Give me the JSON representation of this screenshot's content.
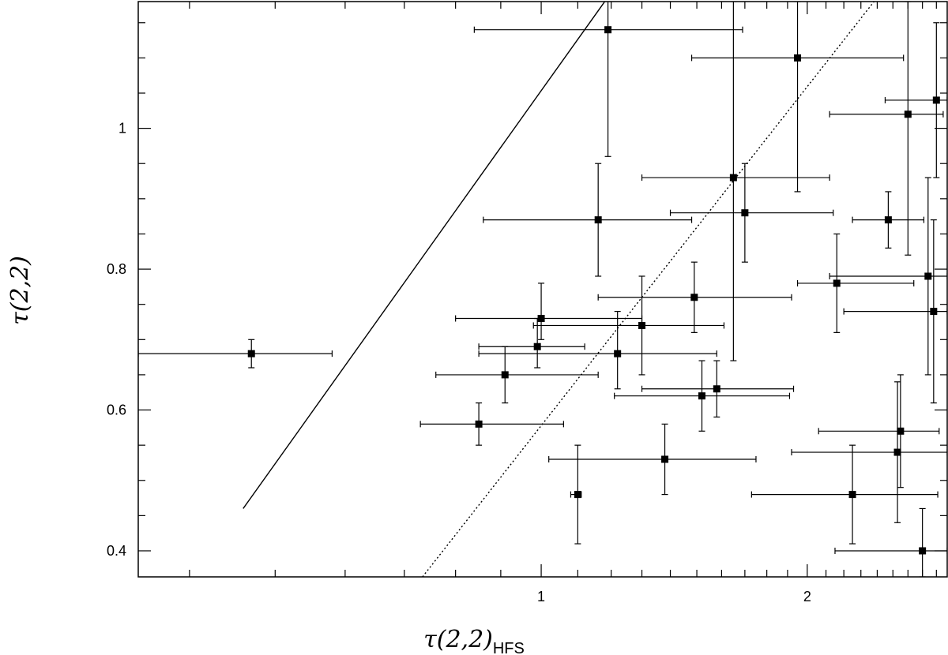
{
  "chart_data": {
    "type": "scatter",
    "xlabel": "τ(2,2)",
    "xlabel_sub": "HFS",
    "ylabel": "τ(2,2)",
    "xlim": [
      0.35,
      2.88
    ],
    "ylim": [
      0.363,
      1.18
    ],
    "x_scale": "log",
    "y_scale": "linear",
    "x_major_ticks": [
      1,
      2
    ],
    "x_tick_labels": [
      "1",
      "2"
    ],
    "y_major_ticks": [
      0.4,
      0.6,
      0.8,
      1.0
    ],
    "y_tick_labels": [
      "0.4",
      "0.6",
      "0.8",
      "1"
    ],
    "grid": false,
    "reference_lines": [
      {
        "style": "solid",
        "points": [
          [
            0.46,
            0.46
          ],
          [
            1.18,
            1.18
          ]
        ]
      },
      {
        "style": "dotted",
        "points": [
          [
            0.734,
            0.363
          ],
          [
            2.38,
            1.18
          ]
        ]
      }
    ],
    "points": [
      {
        "x": 0.47,
        "y": 0.68,
        "x_err": [
          0.35,
          0.58
        ],
        "y_err": [
          0.66,
          0.7
        ]
      },
      {
        "x": 0.85,
        "y": 0.58,
        "x_err": [
          0.73,
          1.06
        ],
        "y_err": [
          0.55,
          0.61
        ]
      },
      {
        "x": 0.91,
        "y": 0.65,
        "x_err": [
          0.76,
          1.16
        ],
        "y_err": [
          0.61,
          0.69
        ]
      },
      {
        "x": 0.99,
        "y": 0.69,
        "x_err": [
          0.85,
          1.12
        ],
        "y_err": [
          0.66,
          0.73
        ]
      },
      {
        "x": 1.0,
        "y": 0.73,
        "x_err": [
          0.8,
          1.3
        ],
        "y_err": [
          0.7,
          0.78
        ]
      },
      {
        "x": 1.1,
        "y": 0.48,
        "x_err": [
          1.08,
          1.11
        ],
        "y_err": [
          0.41,
          0.55
        ]
      },
      {
        "x": 1.16,
        "y": 0.87,
        "x_err": [
          0.86,
          1.48
        ],
        "y_err": [
          0.79,
          0.95
        ]
      },
      {
        "x": 1.19,
        "y": 1.14,
        "x_err": [
          0.84,
          1.69
        ],
        "y_err": [
          0.96,
          1.18
        ]
      },
      {
        "x": 1.22,
        "y": 0.68,
        "x_err": [
          0.85,
          1.58
        ],
        "y_err": [
          0.63,
          0.74
        ]
      },
      {
        "x": 1.3,
        "y": 0.72,
        "x_err": [
          0.98,
          1.61
        ],
        "y_err": [
          0.65,
          0.79
        ]
      },
      {
        "x": 1.38,
        "y": 0.53,
        "x_err": [
          1.02,
          1.75
        ],
        "y_err": [
          0.48,
          0.58
        ]
      },
      {
        "x": 1.49,
        "y": 0.76,
        "x_err": [
          1.16,
          1.92
        ],
        "y_err": [
          0.71,
          0.81
        ]
      },
      {
        "x": 1.52,
        "y": 0.62,
        "x_err": [
          1.21,
          1.91
        ],
        "y_err": [
          0.57,
          0.67
        ]
      },
      {
        "x": 1.58,
        "y": 0.63,
        "x_err": [
          1.3,
          1.93
        ],
        "y_err": [
          0.59,
          0.67
        ]
      },
      {
        "x": 1.65,
        "y": 0.93,
        "x_err": [
          1.3,
          2.12
        ],
        "y_err": [
          0.67,
          1.18
        ]
      },
      {
        "x": 1.7,
        "y": 0.88,
        "x_err": [
          1.4,
          2.14
        ],
        "y_err": [
          0.81,
          0.95
        ]
      },
      {
        "x": 1.95,
        "y": 1.1,
        "x_err": [
          1.48,
          2.57
        ],
        "y_err": [
          0.91,
          1.18
        ]
      },
      {
        "x": 2.16,
        "y": 0.78,
        "x_err": [
          1.95,
          2.64
        ],
        "y_err": [
          0.71,
          0.85
        ]
      },
      {
        "x": 2.25,
        "y": 0.48,
        "x_err": [
          1.73,
          2.81
        ],
        "y_err": [
          0.41,
          0.55
        ]
      },
      {
        "x": 2.47,
        "y": 0.87,
        "x_err": [
          2.25,
          2.71
        ],
        "y_err": [
          0.83,
          0.91
        ]
      },
      {
        "x": 2.53,
        "y": 0.54,
        "x_err": [
          1.92,
          2.88
        ],
        "y_err": [
          0.44,
          0.64
        ]
      },
      {
        "x": 2.55,
        "y": 0.57,
        "x_err": [
          2.06,
          2.82
        ],
        "y_err": [
          0.49,
          0.65
        ]
      },
      {
        "x": 2.6,
        "y": 1.02,
        "x_err": [
          2.12,
          2.85
        ],
        "y_err": [
          0.82,
          1.18
        ]
      },
      {
        "x": 2.7,
        "y": 0.4,
        "x_err": [
          2.15,
          2.88
        ],
        "y_err": [
          0.363,
          0.46
        ]
      },
      {
        "x": 2.74,
        "y": 0.79,
        "x_err": [
          2.12,
          2.88
        ],
        "y_err": [
          0.65,
          0.93
        ]
      },
      {
        "x": 2.78,
        "y": 0.74,
        "x_err": [
          2.2,
          2.88
        ],
        "y_err": [
          0.61,
          0.87
        ]
      },
      {
        "x": 2.8,
        "y": 1.04,
        "x_err": [
          2.45,
          2.88
        ],
        "y_err": [
          0.93,
          1.15
        ]
      }
    ]
  }
}
